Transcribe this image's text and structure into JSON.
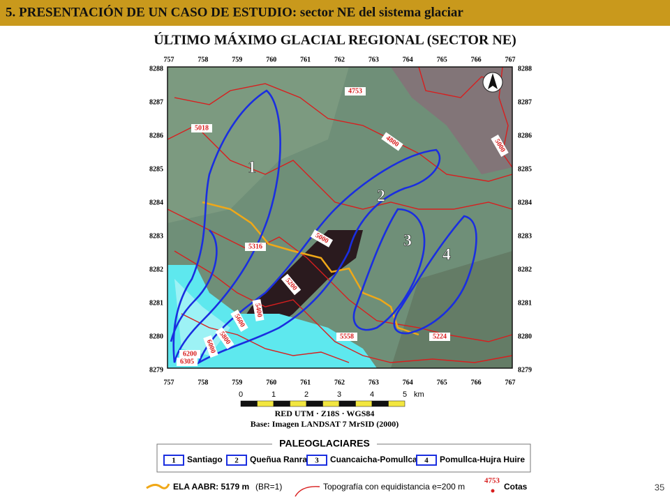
{
  "header": "5. PRESENTACIÓN DE UN CASO DE ESTUDIO: sector NE del sistema glaciar",
  "title": "ÚLTIMO MÁXIMO GLACIAL REGIONAL (SECTOR NE)",
  "map": {
    "eastings": [
      "757",
      "758",
      "759",
      "760",
      "761",
      "762",
      "763",
      "764",
      "765",
      "766",
      "767"
    ],
    "northings": [
      "8288",
      "8287",
      "8286",
      "8285",
      "8284",
      "8283",
      "8282",
      "8281",
      "8280",
      "8279"
    ],
    "contour_labels": [
      "4753",
      "4800",
      "5000",
      "5018",
      "5316",
      "5000",
      "5200",
      "5400",
      "5600",
      "5800",
      "6000",
      "6200",
      "6305",
      "5558",
      "5224"
    ],
    "glacier_numbers": [
      "1",
      "2",
      "3",
      "4"
    ]
  },
  "scale": {
    "ticks": [
      "0",
      "1",
      "2",
      "3",
      "4",
      "5"
    ],
    "unit": "km"
  },
  "grid_text": "RED UTM · Z18S · WGS84",
  "base_text": "Base: Imagen LANDSAT 7 MrSID (2000)",
  "legend": {
    "title": "PALEOGLACIARES",
    "items": [
      {
        "number": "1",
        "name": "Santiago"
      },
      {
        "number": "2",
        "name": "Queñua Ranra"
      },
      {
        "number": "3",
        "name": "Cuancaicha-Pomullca"
      },
      {
        "number": "4",
        "name": "Pomullca-Hujra Huire"
      }
    ]
  },
  "footer": {
    "ela": "ELA AABR: 5179 m",
    "ela_note": "(BR=1)",
    "topo": "Topografía con equidistancia e=200 m",
    "cota_value": "4753",
    "cota": "Cotas"
  },
  "page_number": "35"
}
